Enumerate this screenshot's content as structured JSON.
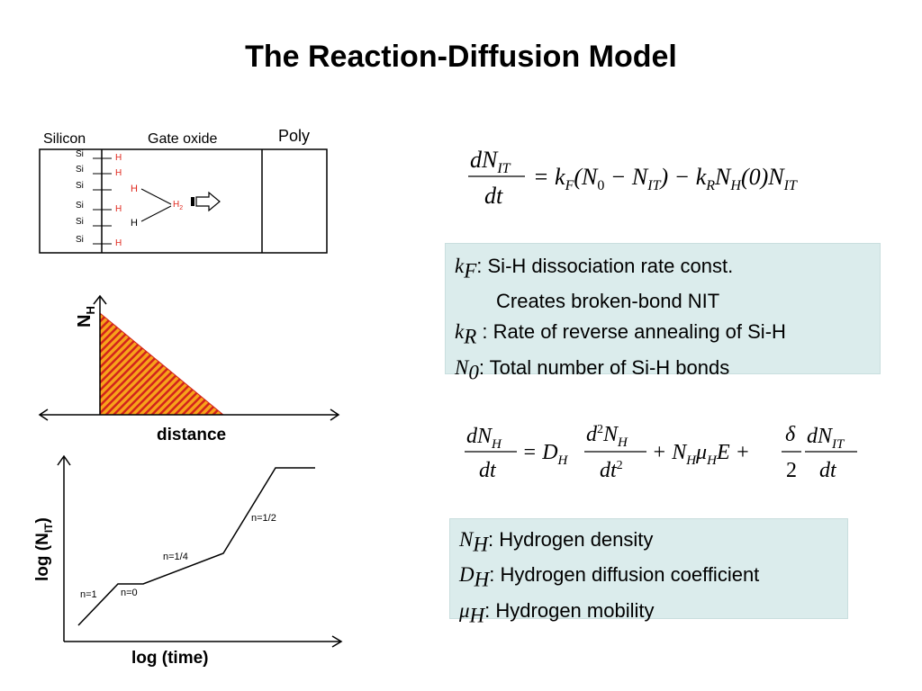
{
  "title": "The Reaction-Diffusion Model",
  "device": {
    "labels": {
      "silicon": "Silicon",
      "gate_oxide": "Gate oxide",
      "poly": "Poly"
    },
    "si": "Si",
    "h": "H",
    "h2": "H",
    "h2_sub": "2"
  },
  "nh_plot": {
    "ylabel": "N",
    "ylabel_sub": "H",
    "xlabel": "distance"
  },
  "time_plot": {
    "ylabel_main": "log (N",
    "ylabel_sub": "IT",
    "ylabel_close": ")",
    "xlabel": "log (time)",
    "segments": [
      "n=1",
      "n=0",
      "n=1/4",
      "n=1/2"
    ]
  },
  "eq1": {
    "lhs_num": "dN",
    "lhs_num_sub": "IT",
    "lhs_den": "dt",
    "rhs": [
      "= k",
      "F",
      "(N",
      "0",
      " − N",
      "IT",
      ") − k",
      "R",
      "N",
      "H",
      "(0)N",
      "IT"
    ]
  },
  "box1": {
    "rows": [
      {
        "sym": "k",
        "sub": "F",
        "text": ": Si-H dissociation rate const."
      },
      {
        "sym": "",
        "sub": "",
        "text": "Creates broken-bond NIT"
      },
      {
        "sym": "k",
        "sub": "R",
        "text": " : Rate of reverse annealing of Si-H"
      },
      {
        "sym": "N",
        "sub": "0",
        "text": ": Total number of Si-H bonds"
      }
    ]
  },
  "eq2": {
    "t1_num": "dN",
    "t1_num_sub": "H",
    "t1_den": "dt",
    "d_sym": "= D",
    "d_sub": "H",
    "t2_num": "d",
    "t2_num_sup": "2",
    "t2_num_rest": "N",
    "t2_num_sub": "H",
    "t2_den": "dt",
    "t2_den_sup": "2",
    "drift": "+ N",
    "drift_sub1": "H",
    "mu": "μ",
    "drift_sub2": "H",
    "e": "E +",
    "t3_num": "δ",
    "t3_den": "2",
    "t4_num": "dN",
    "t4_num_sub": "IT",
    "t4_den": "dt"
  },
  "box2": {
    "rows": [
      {
        "sym": "N",
        "sub": "H",
        "text": ": Hydrogen density"
      },
      {
        "sym": "D",
        "sub": "H",
        "text": ": Hydrogen diffusion coefficient"
      },
      {
        "sym": "μ",
        "sub": "H",
        "text": ":  Hydrogen mobility"
      }
    ]
  },
  "colors": {
    "h_red": "#e0281e",
    "box_bg": "#dbecec",
    "fill_orange": "#f7a21b",
    "fill_red": "#d2231c"
  }
}
